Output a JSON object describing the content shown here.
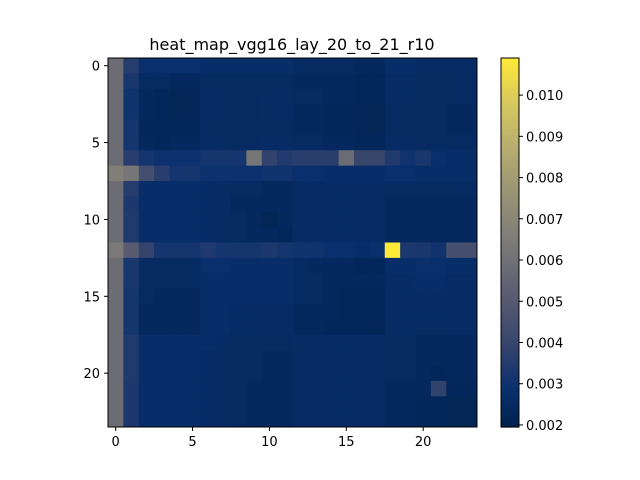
{
  "chart_data": {
    "type": "heatmap",
    "title": "heat_map_vgg16_lay_20_to_21_r10",
    "xlabel": "",
    "ylabel": "",
    "n_rows": 24,
    "n_cols": 24,
    "x_ticks": [
      0,
      5,
      10,
      15,
      20
    ],
    "y_ticks": [
      0,
      5,
      10,
      15,
      20
    ],
    "colormap": "cividis",
    "color_range": [
      0.00195,
      0.0109
    ],
    "colorbar_ticks": [
      0.002,
      0.003,
      0.004,
      0.005,
      0.006,
      0.007,
      0.008,
      0.009,
      0.01
    ],
    "colorbar_tick_labels": [
      "0.002",
      "0.003",
      "0.004",
      "0.005",
      "0.006",
      "0.007",
      "0.008",
      "0.009",
      "0.010"
    ],
    "values": [
      [
        0.0058,
        0.0035,
        0.0028,
        0.0028,
        0.0028,
        0.0028,
        0.0027,
        0.0027,
        0.0027,
        0.0027,
        0.0027,
        0.0027,
        0.0025,
        0.0025,
        0.0025,
        0.0025,
        0.0024,
        0.0024,
        0.0027,
        0.0027,
        0.0026,
        0.0026,
        0.0026,
        0.0026
      ],
      [
        0.0058,
        0.0032,
        0.0025,
        0.0025,
        0.0024,
        0.0024,
        0.0025,
        0.0025,
        0.0025,
        0.0025,
        0.0025,
        0.0025,
        0.0024,
        0.0024,
        0.0024,
        0.0024,
        0.0023,
        0.0023,
        0.0026,
        0.0026,
        0.0025,
        0.0025,
        0.0025,
        0.0025
      ],
      [
        0.0058,
        0.003,
        0.0024,
        0.0023,
        0.0022,
        0.0022,
        0.0026,
        0.0026,
        0.0025,
        0.0025,
        0.0026,
        0.0026,
        0.0025,
        0.0025,
        0.0024,
        0.0024,
        0.0023,
        0.0023,
        0.0026,
        0.0026,
        0.0025,
        0.0025,
        0.0025,
        0.0025
      ],
      [
        0.0058,
        0.003,
        0.0024,
        0.0023,
        0.0022,
        0.0022,
        0.0026,
        0.0026,
        0.0025,
        0.0025,
        0.0026,
        0.0026,
        0.0024,
        0.0024,
        0.0023,
        0.0023,
        0.0022,
        0.0022,
        0.0025,
        0.0025,
        0.0025,
        0.0025,
        0.0024,
        0.0024
      ],
      [
        0.0058,
        0.0031,
        0.0023,
        0.0023,
        0.0023,
        0.0023,
        0.0025,
        0.0025,
        0.0025,
        0.0025,
        0.0025,
        0.0025,
        0.0024,
        0.0024,
        0.0023,
        0.0023,
        0.0022,
        0.0022,
        0.0025,
        0.0025,
        0.0025,
        0.0025,
        0.0024,
        0.0024
      ],
      [
        0.0058,
        0.0031,
        0.0024,
        0.0023,
        0.0024,
        0.0024,
        0.0026,
        0.0026,
        0.0025,
        0.0025,
        0.0026,
        0.0026,
        0.0025,
        0.0025,
        0.0024,
        0.0024,
        0.0023,
        0.0023,
        0.0026,
        0.0026,
        0.0025,
        0.0025,
        0.0025,
        0.0025
      ],
      [
        0.0058,
        0.0036,
        0.0031,
        0.0029,
        0.0029,
        0.0029,
        0.0031,
        0.0031,
        0.0031,
        0.0062,
        0.0038,
        0.0034,
        0.0036,
        0.0036,
        0.0036,
        0.0058,
        0.004,
        0.004,
        0.0034,
        0.003,
        0.0032,
        0.0028,
        0.0027,
        0.0027
      ],
      [
        0.0066,
        0.0062,
        0.0044,
        0.0036,
        0.0031,
        0.0031,
        0.0029,
        0.0029,
        0.0029,
        0.0029,
        0.003,
        0.003,
        0.0028,
        0.0028,
        0.0027,
        0.0027,
        0.0027,
        0.0027,
        0.0028,
        0.0028,
        0.0027,
        0.0027,
        0.0027,
        0.0027
      ],
      [
        0.0058,
        0.0035,
        0.0027,
        0.0027,
        0.0027,
        0.0027,
        0.0026,
        0.0026,
        0.0025,
        0.0025,
        0.0024,
        0.0024,
        0.0026,
        0.0026,
        0.0026,
        0.0026,
        0.0026,
        0.0026,
        0.0025,
        0.0025,
        0.0025,
        0.0025,
        0.0025,
        0.0025
      ],
      [
        0.0058,
        0.0033,
        0.0027,
        0.0027,
        0.0027,
        0.0027,
        0.0026,
        0.0026,
        0.0024,
        0.0024,
        0.0024,
        0.0024,
        0.0026,
        0.0026,
        0.0026,
        0.0026,
        0.0026,
        0.0026,
        0.0024,
        0.0024,
        0.0024,
        0.0024,
        0.0024,
        0.0024
      ],
      [
        0.0058,
        0.0034,
        0.0027,
        0.0027,
        0.0027,
        0.0027,
        0.0026,
        0.0026,
        0.0025,
        0.0024,
        0.0022,
        0.0024,
        0.0026,
        0.0026,
        0.0026,
        0.0026,
        0.0026,
        0.0026,
        0.0024,
        0.0024,
        0.0024,
        0.0024,
        0.0024,
        0.0024
      ],
      [
        0.0058,
        0.0034,
        0.0027,
        0.0027,
        0.0027,
        0.0027,
        0.0026,
        0.0026,
        0.0025,
        0.0024,
        0.0024,
        0.0023,
        0.0026,
        0.0026,
        0.0026,
        0.0026,
        0.0026,
        0.0026,
        0.0024,
        0.0024,
        0.0024,
        0.0024,
        0.0024,
        0.0024
      ],
      [
        0.0064,
        0.0051,
        0.0039,
        0.0031,
        0.0031,
        0.0031,
        0.0034,
        0.0031,
        0.0031,
        0.0031,
        0.0033,
        0.0031,
        0.003,
        0.003,
        0.0028,
        0.0028,
        0.0027,
        0.0028,
        0.0109,
        0.0033,
        0.0032,
        0.003,
        0.0045,
        0.0045
      ],
      [
        0.0058,
        0.0032,
        0.0025,
        0.0025,
        0.0025,
        0.0025,
        0.0028,
        0.0028,
        0.0027,
        0.0027,
        0.0027,
        0.0027,
        0.0025,
        0.0024,
        0.0024,
        0.0024,
        0.0023,
        0.0023,
        0.0027,
        0.0027,
        0.0028,
        0.0028,
        0.0027,
        0.0027
      ],
      [
        0.0058,
        0.0032,
        0.0025,
        0.0025,
        0.0025,
        0.0025,
        0.0027,
        0.0027,
        0.0027,
        0.0027,
        0.0027,
        0.0027,
        0.0025,
        0.0025,
        0.0024,
        0.0024,
        0.0024,
        0.0024,
        0.0026,
        0.0026,
        0.0027,
        0.0027,
        0.0026,
        0.0026
      ],
      [
        0.0058,
        0.0031,
        0.0025,
        0.0024,
        0.0024,
        0.0024,
        0.0027,
        0.0027,
        0.0027,
        0.0027,
        0.0027,
        0.0027,
        0.0025,
        0.0025,
        0.0024,
        0.0023,
        0.0023,
        0.0023,
        0.0026,
        0.0026,
        0.0026,
        0.0026,
        0.0026,
        0.0026
      ],
      [
        0.0058,
        0.0031,
        0.0024,
        0.0024,
        0.0024,
        0.0024,
        0.0027,
        0.0027,
        0.0026,
        0.0026,
        0.0026,
        0.0026,
        0.0024,
        0.0024,
        0.0024,
        0.0023,
        0.0023,
        0.0023,
        0.0026,
        0.0026,
        0.0026,
        0.0026,
        0.0026,
        0.0026
      ],
      [
        0.0058,
        0.0031,
        0.0024,
        0.0024,
        0.0024,
        0.0024,
        0.0027,
        0.0027,
        0.0026,
        0.0026,
        0.0026,
        0.0026,
        0.0024,
        0.0024,
        0.0023,
        0.0023,
        0.0023,
        0.0022,
        0.0026,
        0.0026,
        0.0026,
        0.0026,
        0.0026,
        0.0026
      ],
      [
        0.0058,
        0.0034,
        0.0027,
        0.0027,
        0.0027,
        0.0027,
        0.0027,
        0.0026,
        0.0025,
        0.0025,
        0.0025,
        0.0025,
        0.0026,
        0.0026,
        0.0026,
        0.0026,
        0.0026,
        0.0026,
        0.0025,
        0.0025,
        0.0024,
        0.0024,
        0.0024,
        0.0024
      ],
      [
        0.0058,
        0.0034,
        0.0027,
        0.0027,
        0.0027,
        0.0027,
        0.0026,
        0.0026,
        0.0025,
        0.0025,
        0.0024,
        0.0024,
        0.0026,
        0.0026,
        0.0026,
        0.0026,
        0.0026,
        0.0026,
        0.0025,
        0.0025,
        0.0024,
        0.0024,
        0.0024,
        0.0024
      ],
      [
        0.0058,
        0.0034,
        0.0027,
        0.0027,
        0.0027,
        0.0027,
        0.0026,
        0.0026,
        0.0025,
        0.0025,
        0.0024,
        0.0024,
        0.0026,
        0.0026,
        0.0026,
        0.0026,
        0.0026,
        0.0026,
        0.0025,
        0.0025,
        0.0024,
        0.0023,
        0.0024,
        0.0024
      ],
      [
        0.0058,
        0.0033,
        0.0027,
        0.0027,
        0.0027,
        0.0027,
        0.0026,
        0.0026,
        0.0025,
        0.0024,
        0.0024,
        0.0024,
        0.0026,
        0.0026,
        0.0026,
        0.0026,
        0.0026,
        0.0026,
        0.0024,
        0.0024,
        0.0024,
        0.0038,
        0.0023,
        0.0023
      ],
      [
        0.0058,
        0.0033,
        0.0027,
        0.0027,
        0.0027,
        0.0027,
        0.0026,
        0.0026,
        0.0025,
        0.0024,
        0.0024,
        0.0024,
        0.0026,
        0.0026,
        0.0026,
        0.0026,
        0.0026,
        0.0026,
        0.0024,
        0.0024,
        0.0023,
        0.0023,
        0.0022,
        0.0022
      ],
      [
        0.0058,
        0.0033,
        0.0027,
        0.0027,
        0.0027,
        0.0027,
        0.0026,
        0.0026,
        0.0025,
        0.0024,
        0.0024,
        0.0024,
        0.0026,
        0.0026,
        0.0026,
        0.0026,
        0.0026,
        0.0026,
        0.0024,
        0.0024,
        0.0023,
        0.0023,
        0.0022,
        0.0022
      ]
    ]
  }
}
